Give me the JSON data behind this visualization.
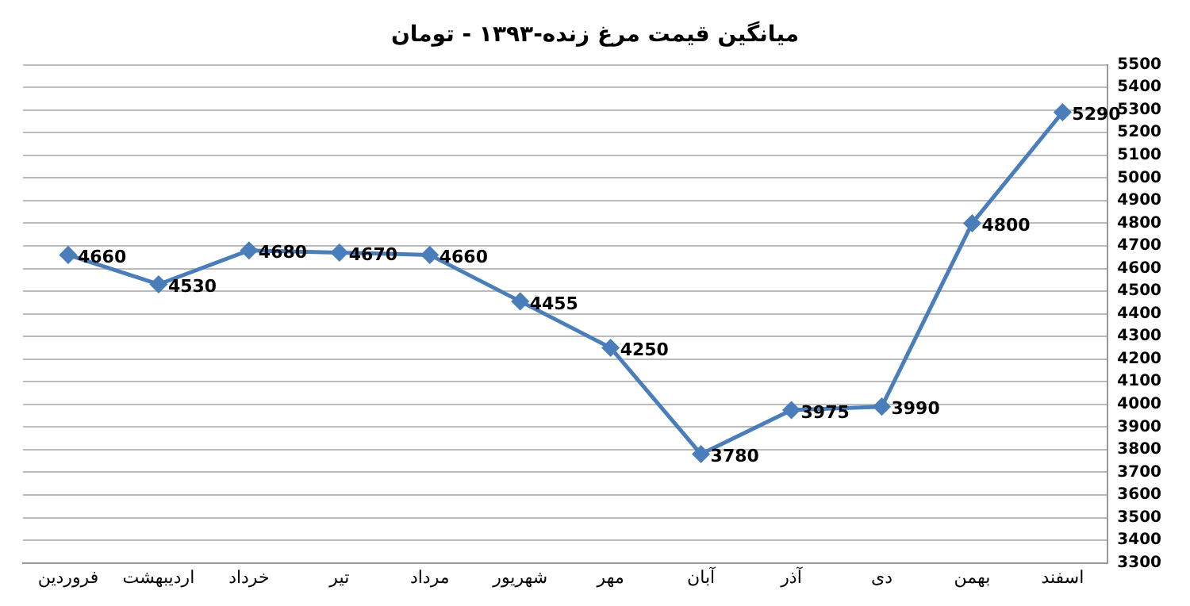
{
  "chart_data": {
    "type": "line",
    "title": "میانگین قیمت مرغ زنده-۱۳۹۳ - تومان",
    "categories": [
      "فروردین",
      "اردیبهشت",
      "خرداد",
      "تیر",
      "مرداد",
      "شهریور",
      "مهر",
      "آبان",
      "آذر",
      "دی",
      "بهمن",
      "اسفند"
    ],
    "series": [
      {
        "color": "#4a7ebb",
        "values": [
          4660,
          4530,
          4680,
          4670,
          4660,
          4455,
          4250,
          3780,
          3975,
          3990,
          4800,
          5290
        ]
      }
    ],
    "ylim": [
      3300,
      5500
    ],
    "yticks": [
      3300,
      3400,
      3500,
      3600,
      3700,
      3800,
      3900,
      4000,
      4100,
      4200,
      4300,
      4400,
      4500,
      4600,
      4700,
      4800,
      4900,
      5000,
      5100,
      5200,
      5300,
      5400,
      5500
    ],
    "grid": "y",
    "legend": false,
    "marker": "diamond",
    "line_style": "solid",
    "data_labels": true
  }
}
